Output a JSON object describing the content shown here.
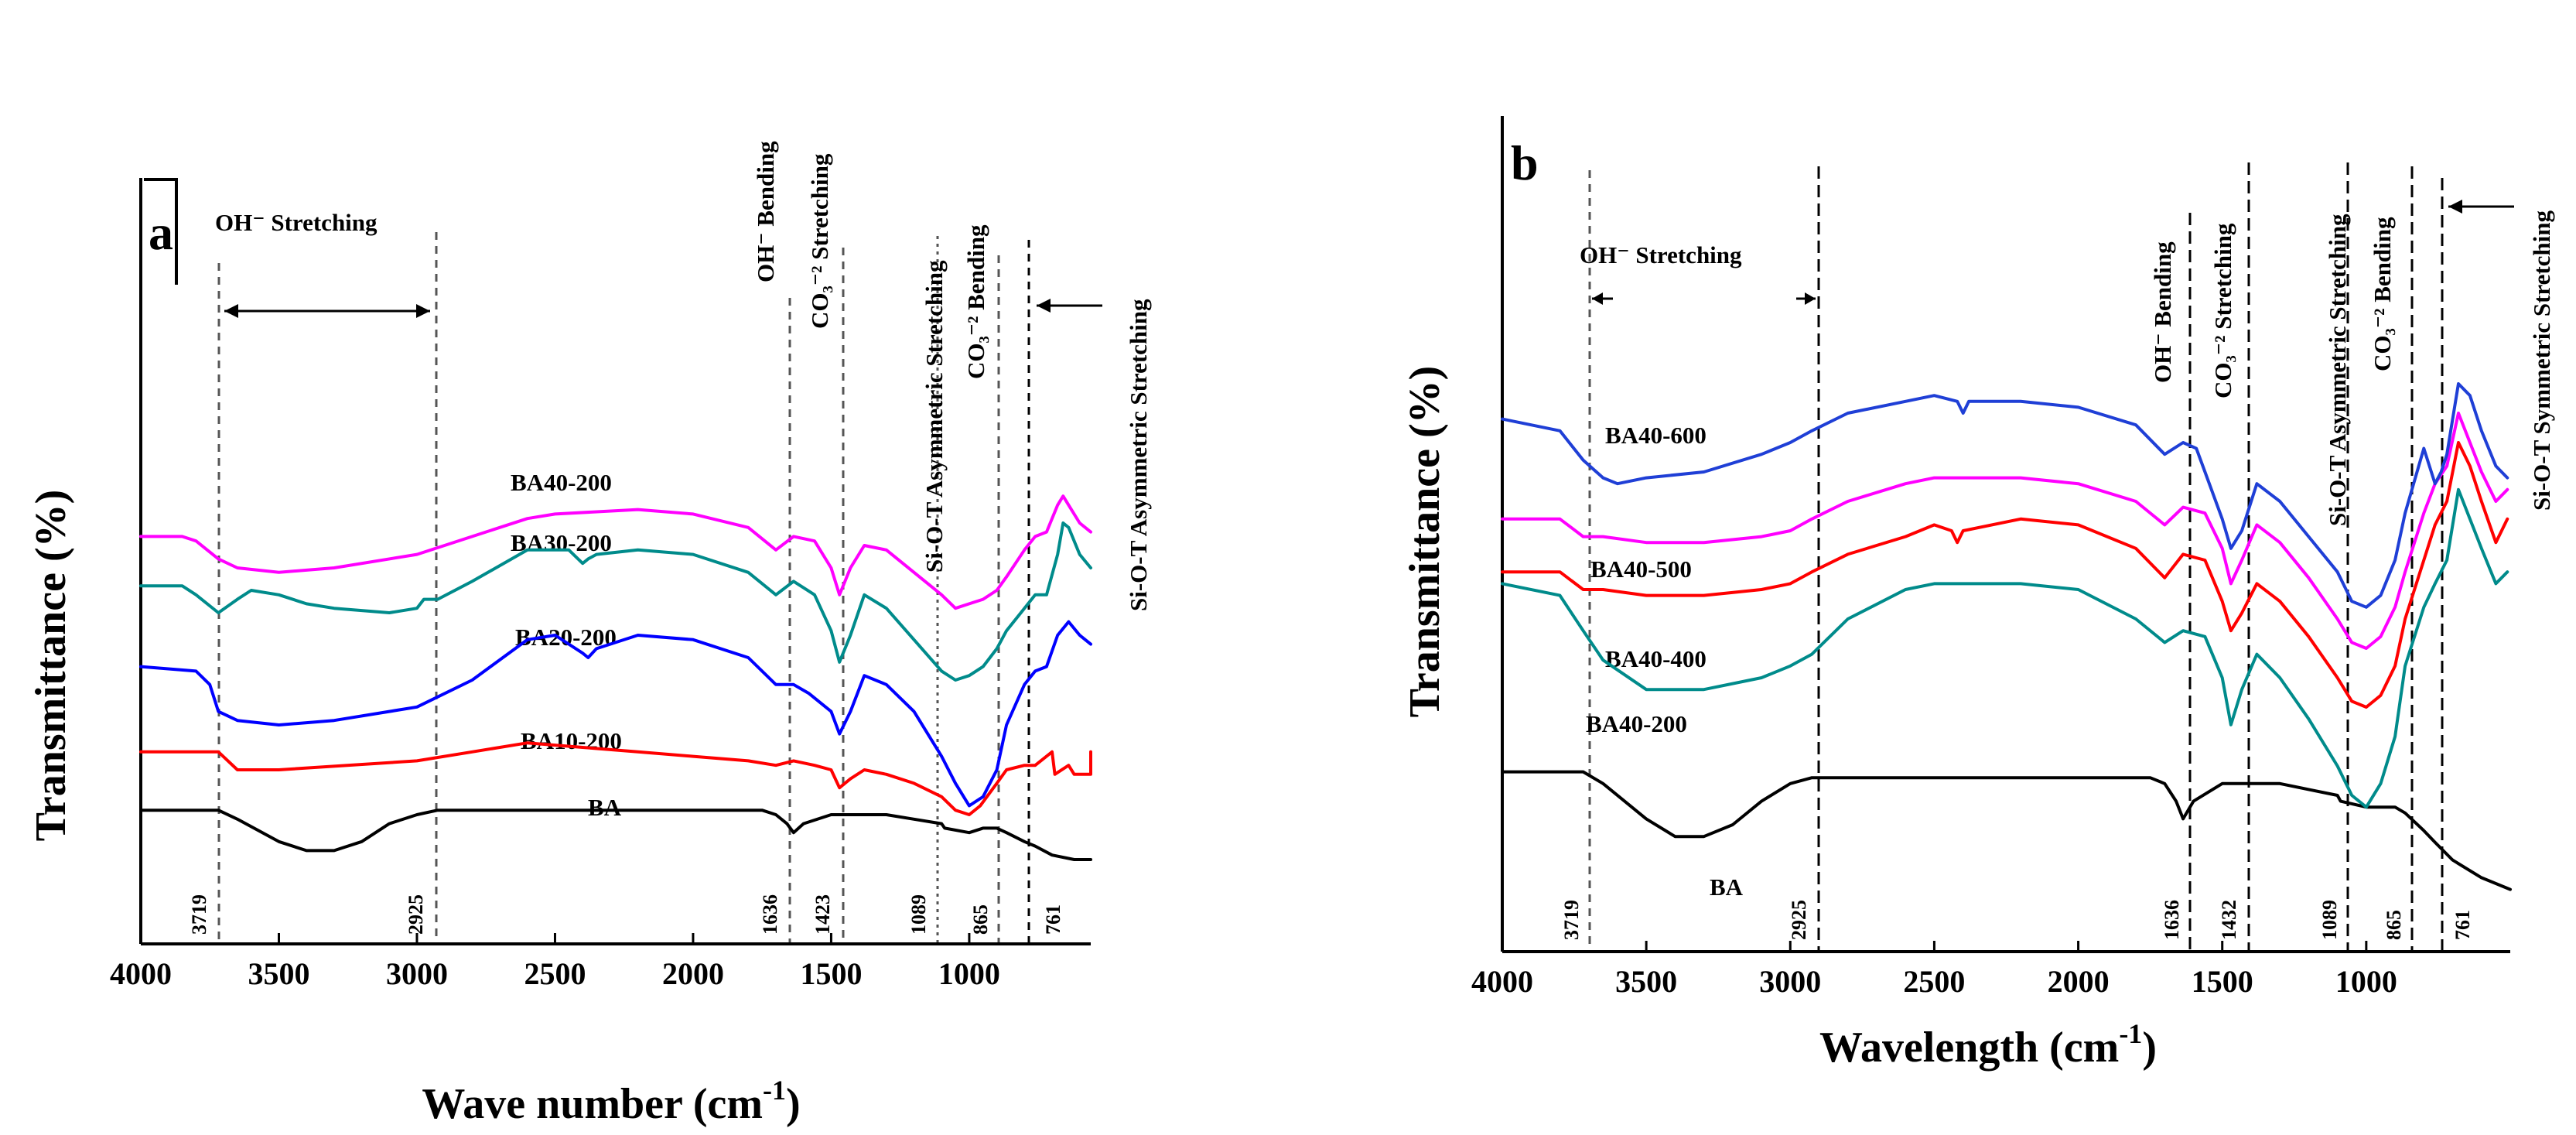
{
  "chart_data": [
    {
      "panel": "a",
      "type": "line",
      "xlabel": "Wave number (cm⁻¹)",
      "ylabel": "Transmittance (%)",
      "xlim": [
        4000,
        560
      ],
      "ylim": [
        0,
        100
      ],
      "xticks": [
        4000,
        3500,
        3000,
        2500,
        2000,
        1500,
        1000
      ],
      "series": [
        {
          "name": "BA",
          "color": "#000000",
          "x": [
            4000,
            3900,
            3800,
            3719,
            3650,
            3500,
            3400,
            3300,
            3200,
            3100,
            3000,
            2925,
            2800,
            2500,
            2000,
            1750,
            1700,
            1660,
            1636,
            1600,
            1500,
            1423,
            1300,
            1200,
            1100,
            1089,
            1000,
            950,
            900,
            865,
            800,
            761,
            700,
            620,
            560
          ],
          "y": [
            16,
            16,
            16,
            16,
            14,
            9,
            7,
            7,
            9,
            13,
            15,
            16,
            16,
            16,
            16,
            16,
            15,
            13,
            11,
            13,
            15,
            15,
            15,
            14,
            13,
            12,
            11,
            12,
            12,
            11,
            9,
            8,
            6,
            5,
            5
          ]
        },
        {
          "name": "BA10-200",
          "color": "#ff0000",
          "x": [
            4000,
            3800,
            3719,
            3650,
            3500,
            3000,
            2800,
            2600,
            2400,
            2200,
            2000,
            1800,
            1700,
            1636,
            1560,
            1500,
            1470,
            1430,
            1380,
            1300,
            1200,
            1100,
            1050,
            1000,
            960,
            900,
            865,
            800,
            761,
            700,
            690,
            640,
            620,
            560,
            560
          ],
          "y": [
            29,
            29,
            29,
            25,
            25,
            27,
            29,
            31,
            30,
            29,
            28,
            27,
            26,
            27,
            26,
            25,
            21,
            23,
            25,
            24,
            22,
            19,
            16,
            15,
            17,
            22,
            25,
            26,
            26,
            29,
            24,
            26,
            24,
            24,
            29
          ]
        },
        {
          "name": "BA20-200",
          "color": "#0000ff",
          "x": [
            4000,
            3800,
            3750,
            3719,
            3650,
            3500,
            3300,
            3000,
            2800,
            2600,
            2500,
            2400,
            2380,
            2350,
            2200,
            2000,
            1800,
            1700,
            1636,
            1580,
            1500,
            1470,
            1430,
            1380,
            1300,
            1200,
            1100,
            1050,
            1000,
            950,
            900,
            865,
            800,
            761,
            720,
            680,
            640,
            600,
            560
          ],
          "y": [
            48,
            47,
            44,
            38,
            36,
            35,
            36,
            39,
            45,
            54,
            55,
            51,
            50,
            52,
            55,
            54,
            50,
            44,
            44,
            42,
            38,
            33,
            38,
            46,
            44,
            38,
            28,
            22,
            17,
            19,
            25,
            35,
            44,
            47,
            48,
            55,
            58,
            55,
            53
          ]
        },
        {
          "name": "BA30-200",
          "color": "#008b8b",
          "x": [
            4000,
            3850,
            3800,
            3719,
            3650,
            3600,
            3500,
            3400,
            3300,
            3100,
            3000,
            2975,
            2925,
            2800,
            2600,
            2450,
            2400,
            2380,
            2350,
            2200,
            2000,
            1800,
            1700,
            1636,
            1560,
            1500,
            1470,
            1430,
            1380,
            1300,
            1200,
            1100,
            1050,
            1000,
            950,
            900,
            865,
            800,
            761,
            720,
            680,
            660,
            640,
            600,
            560
          ],
          "y": [
            66,
            66,
            64,
            60,
            63,
            65,
            64,
            62,
            61,
            60,
            61,
            63,
            63,
            67,
            74,
            74,
            71,
            72,
            73,
            74,
            73,
            69,
            64,
            67,
            64,
            56,
            49,
            55,
            64,
            61,
            54,
            47,
            45,
            46,
            48,
            52,
            56,
            61,
            64,
            64,
            73,
            80,
            79,
            73,
            70
          ]
        },
        {
          "name": "BA40-200",
          "color": "#ff00ff",
          "x": [
            4000,
            3850,
            3800,
            3719,
            3650,
            3500,
            3300,
            3000,
            2800,
            2600,
            2500,
            2200,
            2000,
            1800,
            1700,
            1636,
            1560,
            1500,
            1470,
            1430,
            1380,
            1300,
            1200,
            1100,
            1050,
            1000,
            950,
            900,
            865,
            800,
            761,
            720,
            680,
            660,
            640,
            600,
            560
          ],
          "y": [
            77,
            77,
            76,
            72,
            70,
            69,
            70,
            73,
            77,
            81,
            82,
            83,
            82,
            79,
            74,
            77,
            76,
            70,
            64,
            70,
            75,
            74,
            69,
            64,
            61,
            62,
            63,
            65,
            68,
            74,
            77,
            78,
            84,
            86,
            84,
            80,
            78
          ]
        }
      ],
      "annotations": [
        {
          "text": "OH⁻ Stretching",
          "x_from": 3719,
          "x_to": 2925
        },
        {
          "text": "OH⁻ Bending",
          "x": 1636
        },
        {
          "text": "CO₃⁻² Stretching",
          "x": 1423
        },
        {
          "text": "Si-O-T Asymmetric Stretching",
          "x": 1089
        },
        {
          "text": "CO₃⁻² Bending",
          "x": 865
        },
        {
          "text": "Si-O-T Asymmetric Stretching",
          "x": 761
        }
      ],
      "peaks": [
        3719,
        2925,
        1636,
        1423,
        1089,
        865,
        761
      ]
    },
    {
      "panel": "b",
      "type": "line",
      "xlabel": "Wavelength (cm⁻¹)",
      "ylabel": "Transmittance (%)",
      "xlim": [
        4000,
        500
      ],
      "ylim": [
        0,
        100
      ],
      "xticks": [
        4000,
        3500,
        3000,
        2500,
        2000,
        1500,
        1000
      ],
      "series": [
        {
          "name": "BA",
          "color": "#000000",
          "x": [
            4000,
            3800,
            3719,
            3650,
            3500,
            3400,
            3300,
            3200,
            3100,
            3000,
            2925,
            2800,
            2500,
            2000,
            1750,
            1700,
            1660,
            1636,
            1600,
            1500,
            1432,
            1300,
            1200,
            1100,
            1089,
            1000,
            950,
            900,
            865,
            800,
            761,
            700,
            600,
            500
          ],
          "y": [
            24,
            24,
            24,
            22,
            16,
            13,
            13,
            15,
            19,
            22,
            23,
            23,
            23,
            23,
            23,
            22,
            19,
            16,
            19,
            22,
            22,
            22,
            21,
            20,
            19,
            18,
            18,
            18,
            17,
            14,
            12,
            9,
            6,
            4
          ]
        },
        {
          "name": "BA40-200",
          "color": "#008b8b",
          "x": [
            4000,
            3800,
            3719,
            3650,
            3500,
            3300,
            3100,
            3000,
            2925,
            2800,
            2600,
            2500,
            2200,
            2000,
            1800,
            1700,
            1636,
            1560,
            1500,
            1470,
            1432,
            1380,
            1300,
            1200,
            1100,
            1050,
            1000,
            950,
            900,
            865,
            800,
            761,
            720,
            680,
            640,
            600,
            550,
            510
          ],
          "y": [
            56,
            54,
            48,
            43,
            38,
            38,
            40,
            42,
            44,
            50,
            55,
            56,
            56,
            55,
            50,
            46,
            48,
            47,
            40,
            32,
            38,
            44,
            40,
            33,
            25,
            20,
            18,
            22,
            30,
            42,
            52,
            56,
            60,
            72,
            67,
            62,
            56,
            58
          ]
        },
        {
          "name": "BA40-400",
          "color": "#ff0000",
          "x": [
            4000,
            3800,
            3719,
            3650,
            3500,
            3300,
            3100,
            3000,
            2925,
            2800,
            2600,
            2500,
            2440,
            2420,
            2400,
            2200,
            2000,
            1800,
            1700,
            1636,
            1560,
            1500,
            1470,
            1432,
            1380,
            1300,
            1200,
            1100,
            1050,
            1000,
            950,
            900,
            865,
            800,
            761,
            720,
            680,
            640,
            600,
            550,
            510
          ],
          "y": [
            58,
            58,
            55,
            55,
            54,
            54,
            55,
            56,
            58,
            61,
            64,
            66,
            65,
            63,
            65,
            67,
            66,
            62,
            57,
            61,
            60,
            53,
            48,
            51,
            56,
            53,
            47,
            40,
            36,
            35,
            37,
            42,
            50,
            60,
            66,
            70,
            80,
            76,
            70,
            63,
            67
          ]
        },
        {
          "name": "BA40-500",
          "color": "#ff00ff",
          "x": [
            4000,
            3800,
            3719,
            3650,
            3500,
            3300,
            3100,
            3000,
            2925,
            2800,
            2600,
            2500,
            2200,
            2000,
            1800,
            1700,
            1636,
            1560,
            1500,
            1470,
            1432,
            1380,
            1300,
            1200,
            1100,
            1050,
            1000,
            950,
            900,
            865,
            800,
            761,
            720,
            680,
            640,
            600,
            550,
            510
          ],
          "y": [
            67,
            67,
            64,
            64,
            63,
            63,
            64,
            65,
            67,
            70,
            73,
            74,
            74,
            73,
            70,
            66,
            69,
            68,
            62,
            56,
            60,
            66,
            63,
            57,
            50,
            46,
            45,
            47,
            52,
            58,
            68,
            73,
            76,
            85,
            80,
            75,
            70,
            72
          ]
        },
        {
          "name": "BA40-600",
          "color": "#1f3fd6",
          "x": [
            4000,
            3800,
            3719,
            3650,
            3600,
            3500,
            3300,
            3100,
            3000,
            2925,
            2800,
            2600,
            2500,
            2420,
            2400,
            2380,
            2200,
            2000,
            1800,
            1700,
            1636,
            1590,
            1560,
            1500,
            1470,
            1432,
            1380,
            1300,
            1200,
            1100,
            1050,
            1000,
            950,
            900,
            865,
            800,
            761,
            740,
            720,
            680,
            640,
            600,
            550,
            510
          ],
          "y": [
            84,
            82,
            77,
            74,
            73,
            74,
            75,
            78,
            80,
            82,
            85,
            87,
            88,
            87,
            85,
            87,
            87,
            86,
            83,
            78,
            80,
            79,
            75,
            67,
            62,
            65,
            73,
            70,
            64,
            58,
            53,
            52,
            54,
            60,
            68,
            79,
            73,
            75,
            78,
            90,
            88,
            82,
            76,
            74
          ]
        }
      ],
      "annotations": [
        {
          "text": "OH⁻ Stretching",
          "x_from": 3719,
          "x_to": 2925
        },
        {
          "text": "OH⁻ Bending",
          "x": 1636
        },
        {
          "text": "CO₃⁻² Stretching",
          "x": 1432
        },
        {
          "text": "Si-O-T Asymmetric Stretching",
          "x": 1089
        },
        {
          "text": "CO₃⁻² Bending",
          "x": 865
        },
        {
          "text": "Si-O-T Symmetric Stretching",
          "x": 761
        }
      ],
      "peaks": [
        3719,
        2925,
        1636,
        1432,
        1089,
        865,
        761
      ]
    }
  ],
  "panels": {
    "a": {
      "label": "a",
      "xlabel": "Wave number (cm",
      "xlabel_sup": "-1",
      "xlabel_end": ")",
      "ylabel": "Transmittance (%)",
      "series_labels": [
        "BA40-200",
        "BA30-200",
        "BA20-200",
        "BA10-200",
        "BA"
      ],
      "oh_stretch": "OH⁻ Stretching",
      "oh_bend": "OH⁻ Bending",
      "co3_stretch": "CO₃⁻² Stretching",
      "sio_asym": "Si-O-T Asymmetric Stretching",
      "co3_bend": "CO₃⁻² Bending",
      "sio_asym2": "Si-O-T Asymmetric Stretching",
      "peaks": [
        "3719",
        "2925",
        "1636",
        "1423",
        "1089",
        "865",
        "761"
      ]
    },
    "b": {
      "label": "b",
      "xlabel": "Wavelength (cm",
      "xlabel_sup": "-1",
      "xlabel_end": ")",
      "ylabel": "Transmittance (%)",
      "series_labels": [
        "BA40-600",
        "BA40-500",
        "BA40-400",
        "BA40-200",
        "BA"
      ],
      "oh_stretch": "OH⁻ Stretching",
      "oh_bend": "OH⁻ Bending",
      "co3_stretch": "CO₃⁻² Stretching",
      "sio_asym": "Si-O-T Asymmetric Stretching",
      "co3_bend": "CO₃⁻² Bending",
      "sio_sym": "Si-O-T Symmetric Stretching",
      "peaks": [
        "3719",
        "2925",
        "1636",
        "1432",
        "1089",
        "865",
        "761"
      ]
    }
  }
}
